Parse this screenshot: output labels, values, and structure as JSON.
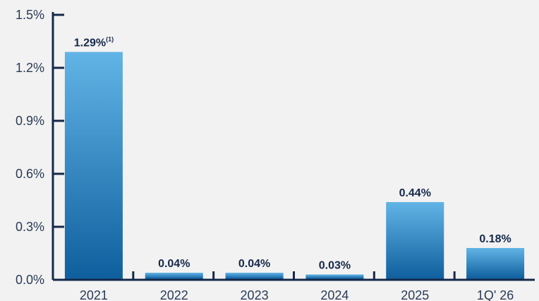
{
  "chart_data": {
    "type": "bar",
    "categories": [
      "2021",
      "2022",
      "2023",
      "2024",
      "2025",
      "1Q' 26"
    ],
    "values": [
      1.29,
      0.04,
      0.04,
      0.03,
      0.44,
      0.18
    ],
    "data_labels": [
      "1.29%",
      "0.04%",
      "0.04%",
      "0.03%",
      "0.44%",
      "0.18%"
    ],
    "data_label_superscripts": [
      "(1)",
      "",
      "",
      "",
      "",
      ""
    ],
    "y_ticks": [
      "0.0%",
      "0.3%",
      "0.6%",
      "0.9%",
      "1.2%",
      "1.5%"
    ],
    "y_tick_values": [
      0,
      0.3,
      0.6,
      0.9,
      1.2,
      1.5
    ],
    "ylim": [
      0,
      1.5
    ],
    "grid": false,
    "colors": {
      "bar_top": "#62b4e6",
      "bar_bottom": "#0f5f9e",
      "axis": "#15294a",
      "text": "#2a3b56"
    }
  }
}
